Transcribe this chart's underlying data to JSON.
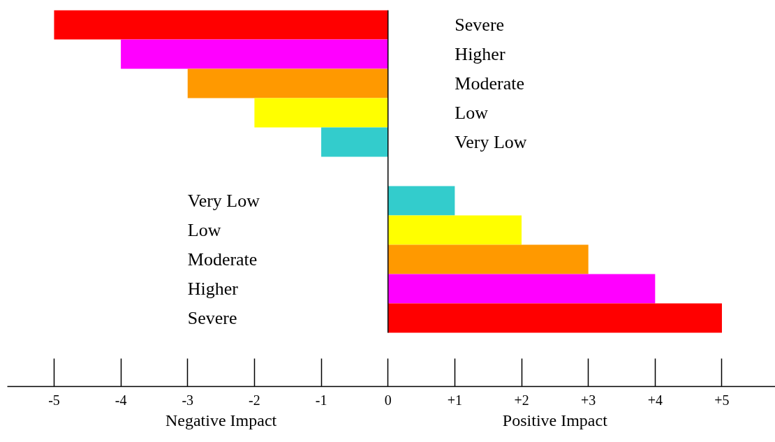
{
  "chart_data": {
    "type": "bar",
    "orientation": "horizontal",
    "categories": [
      "Severe",
      "Higher",
      "Moderate",
      "Low",
      "Very Low",
      null,
      "Very Low",
      "Low",
      "Moderate",
      "Higher",
      "Severe"
    ],
    "values": [
      -5,
      -4,
      -3,
      -2,
      -1,
      null,
      1,
      2,
      3,
      4,
      5
    ],
    "colors": [
      "#ff0000",
      "#ff00ff",
      "#ff9900",
      "#ffff00",
      "#33cccc",
      null,
      "#33cccc",
      "#ffff00",
      "#ff9900",
      "#ff00ff",
      "#ff0000"
    ],
    "xlim": [
      -5.7,
      5.8
    ],
    "xticks": [
      {
        "value": -5,
        "label": "-5"
      },
      {
        "value": -4,
        "label": "-4"
      },
      {
        "value": -3,
        "label": "-3"
      },
      {
        "value": -2,
        "label": "-2"
      },
      {
        "value": -1,
        "label": "-1"
      },
      0,
      {
        "value": 1,
        "label": "+1"
      },
      {
        "value": 2,
        "label": "+2"
      },
      {
        "value": 3,
        "label": "+3"
      },
      {
        "value": 4,
        "label": "+4"
      },
      {
        "value": 5,
        "label": "+5"
      }
    ],
    "ref_lines": [
      {
        "axis": "x",
        "value": 0,
        "color": "#000000"
      }
    ],
    "annotations": [
      "Negative Impact",
      "Positive Impact"
    ],
    "grid": false
  }
}
